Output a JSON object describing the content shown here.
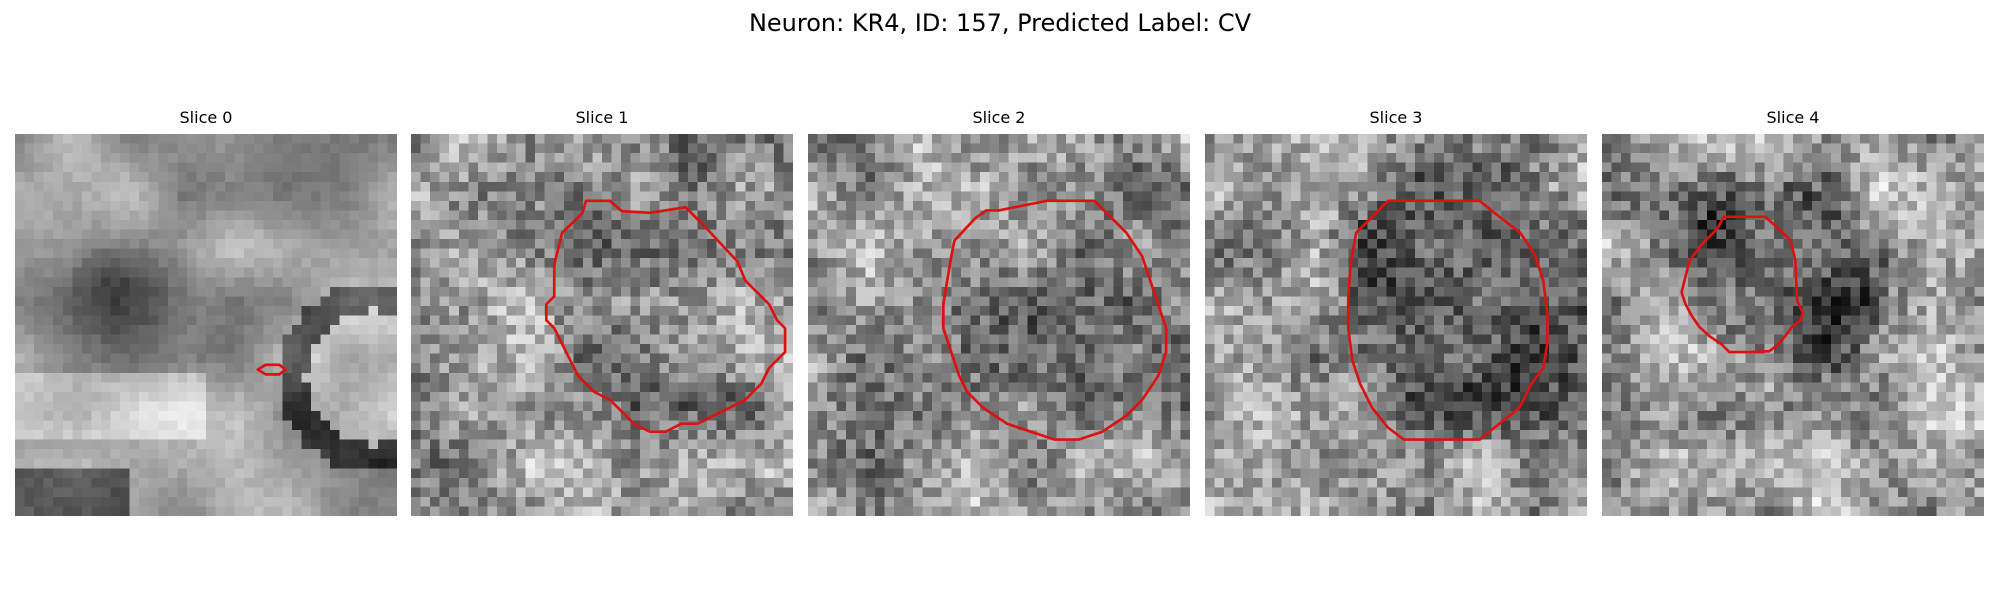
{
  "figure": {
    "title": "Neuron: KR4, ID: 157, Predicted Label: CV",
    "contour_color": "#dd1111"
  },
  "panels": [
    {
      "title": "Slice 0",
      "shading": "cell_edge",
      "seed": 11,
      "contour": [
        [
          30.5,
          21.2
        ],
        [
          31.5,
          20.6
        ],
        [
          33.2,
          20.6
        ],
        [
          34,
          21.2
        ],
        [
          33.2,
          21.8
        ],
        [
          31.5,
          21.8
        ]
      ]
    },
    {
      "title": "Slice 1",
      "shading": "cell_bright",
      "seed": 23,
      "contour": [
        [
          19,
          4
        ],
        [
          21.5,
          1.6
        ],
        [
          22,
          0
        ],
        [
          25,
          0
        ],
        [
          26.5,
          1.3
        ],
        [
          30,
          1.5
        ],
        [
          34.5,
          0.8
        ],
        [
          37,
          3.3
        ],
        [
          39.5,
          6
        ],
        [
          41,
          7.6
        ],
        [
          42,
          10
        ],
        [
          43,
          11
        ],
        [
          45,
          13
        ],
        [
          46,
          15
        ],
        [
          47,
          16
        ],
        [
          47,
          19
        ],
        [
          46,
          20
        ],
        [
          45,
          21
        ],
        [
          44,
          23
        ],
        [
          43,
          24
        ],
        [
          42,
          25
        ],
        [
          40,
          26
        ],
        [
          38,
          27
        ],
        [
          36,
          28
        ],
        [
          34,
          28
        ],
        [
          32,
          29
        ],
        [
          30,
          29
        ],
        [
          28,
          28
        ],
        [
          26,
          26
        ],
        [
          25,
          25
        ],
        [
          23,
          24
        ],
        [
          21,
          22
        ],
        [
          20,
          20
        ],
        [
          19,
          18
        ],
        [
          18,
          16
        ],
        [
          17,
          15
        ],
        [
          17,
          13
        ],
        [
          18,
          12
        ],
        [
          18,
          8
        ]
      ]
    },
    {
      "title": "Slice 2",
      "shading": "cell_bright",
      "seed": 37,
      "contour": [
        [
          18.4,
          5
        ],
        [
          21,
          2.2
        ],
        [
          22.4,
          1.2
        ],
        [
          24,
          1.2
        ],
        [
          27,
          0.6
        ],
        [
          30,
          0
        ],
        [
          33,
          0
        ],
        [
          36,
          0
        ],
        [
          38,
          2
        ],
        [
          40,
          4
        ],
        [
          42,
          7
        ],
        [
          43,
          10
        ],
        [
          44,
          13
        ],
        [
          45,
          16
        ],
        [
          45,
          19
        ],
        [
          44,
          22
        ],
        [
          42,
          25
        ],
        [
          40,
          27
        ],
        [
          37,
          29
        ],
        [
          34,
          30
        ],
        [
          31,
          30
        ],
        [
          28,
          29
        ],
        [
          25,
          28
        ],
        [
          22,
          26
        ],
        [
          20,
          24
        ],
        [
          19,
          22
        ],
        [
          18,
          19
        ],
        [
          17,
          16
        ],
        [
          17,
          13
        ],
        [
          17.5,
          10
        ],
        [
          18,
          7
        ]
      ]
    },
    {
      "title": "Slice 3",
      "shading": "cell_dark",
      "seed": 41,
      "contour": [
        [
          19,
          4
        ],
        [
          21,
          2
        ],
        [
          23,
          0
        ],
        [
          26,
          0
        ],
        [
          29,
          0
        ],
        [
          32,
          0
        ],
        [
          34.5,
          0
        ],
        [
          37,
          2
        ],
        [
          39.6,
          4
        ],
        [
          41.4,
          6.7
        ],
        [
          42.5,
          10
        ],
        [
          43,
          14
        ],
        [
          43,
          18
        ],
        [
          42.5,
          21
        ],
        [
          41,
          23
        ],
        [
          39.5,
          26
        ],
        [
          37,
          28
        ],
        [
          34.5,
          30
        ],
        [
          31,
          30
        ],
        [
          28,
          30
        ],
        [
          25,
          30
        ],
        [
          23,
          28.5
        ],
        [
          21,
          26
        ],
        [
          19.5,
          23
        ],
        [
          18.5,
          20
        ],
        [
          18,
          16
        ],
        [
          18,
          12
        ],
        [
          18.3,
          8
        ]
      ]
    },
    {
      "title": "Slice 4",
      "shading": "cell_dark_small",
      "seed": 53,
      "contour": [
        [
          12.5,
          5.5
        ],
        [
          14.5,
          3.5
        ],
        [
          15.3,
          2
        ],
        [
          18,
          2
        ],
        [
          20.5,
          2
        ],
        [
          22,
          3.3
        ],
        [
          23.7,
          5
        ],
        [
          24.3,
          7.5
        ],
        [
          24.4,
          10
        ],
        [
          24.5,
          12.5
        ],
        [
          25.2,
          14
        ],
        [
          25,
          15
        ],
        [
          23.9,
          15.8
        ],
        [
          23,
          17
        ],
        [
          22.2,
          18
        ],
        [
          21,
          18.9
        ],
        [
          18.5,
          19
        ],
        [
          16,
          19
        ],
        [
          15,
          18
        ],
        [
          13.5,
          17
        ],
        [
          12.2,
          15.8
        ],
        [
          11.3,
          14.5
        ],
        [
          10.5,
          13
        ],
        [
          10,
          11.5
        ],
        [
          10.5,
          9.5
        ],
        [
          11,
          7.5
        ]
      ]
    }
  ]
}
